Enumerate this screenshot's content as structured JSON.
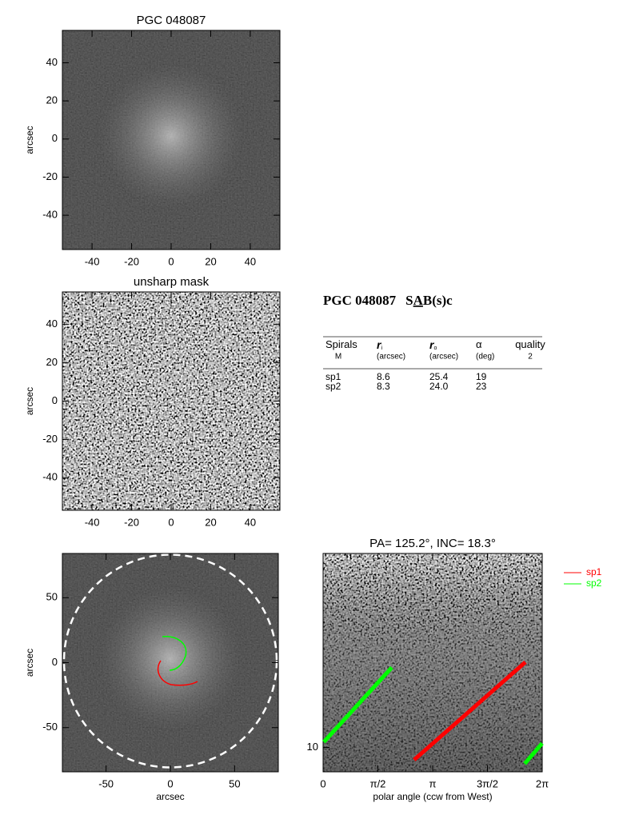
{
  "chart_data": [
    {
      "type": "image",
      "title": "PGC 048087",
      "ylabel": "arcsec",
      "xlim": [
        -55,
        55
      ],
      "ylim": [
        -58,
        57
      ],
      "xticks": [
        -40,
        -20,
        0,
        20,
        40
      ],
      "yticks": [
        -40,
        -20,
        0,
        20,
        40
      ]
    },
    {
      "type": "image",
      "title": "unsharp mask",
      "ylabel": "arcsec",
      "xlim": [
        -55,
        55
      ],
      "ylim": [
        -57,
        57
      ],
      "xticks": [
        -40,
        -20,
        0,
        20,
        40
      ],
      "yticks": [
        -40,
        -20,
        0,
        20,
        40
      ]
    },
    {
      "type": "image",
      "xlabel": "arcsec",
      "ylabel": "arcsec",
      "xlim": [
        -84,
        84
      ],
      "ylim": [
        -84,
        84
      ],
      "xticks": [
        -50,
        0,
        50
      ],
      "yticks": [
        -50,
        0,
        50
      ]
    },
    {
      "type": "line",
      "title": "PA= 125.2°, INC=  18.3°",
      "xlabel": "polar angle (ccw from West)",
      "log_y": true,
      "xlim": [
        0,
        6.283
      ],
      "ylim": [
        8.4,
        40
      ],
      "xticks": [
        0,
        {
          "value": 1.571,
          "label": "π/2"
        },
        {
          "value": 3.142,
          "label": "π"
        },
        {
          "value": 4.712,
          "label": "3π/2"
        },
        {
          "value": 6.283,
          "label": "2π"
        }
      ],
      "yticks": [
        10
      ],
      "series": [
        {
          "name": "sp1",
          "color": "#ff0000",
          "x": [
            2.61,
            5.8
          ],
          "values": [
            9.15,
            18.4
          ]
        },
        {
          "name": "sp2",
          "color": "#00ff00",
          "x": [
            0.02,
            1.97,
            4.0,
            5.78,
            6.28
          ],
          "values": [
            10.4,
            17.7,
            null,
            8.9,
            10.3
          ]
        }
      ]
    }
  ],
  "table": {
    "heading": {
      "galaxy": "PGC 048087",
      "class_start": "S",
      "class_bar": "A",
      "class_end": "B(s)c"
    },
    "columns": [
      {
        "label": "Spirals",
        "sub": "M"
      },
      {
        "label": "r",
        "index": "i",
        "sub": "(arcsec)"
      },
      {
        "label": "r",
        "index": "o",
        "sub": "(arcsec)"
      },
      {
        "label": "α",
        "sub": "(deg)"
      },
      {
        "label": "quality",
        "sub": "2"
      }
    ],
    "rows": [
      [
        "sp1",
        "8.6",
        "25.4",
        "19"
      ],
      [
        "sp2",
        "8.3",
        "24.0",
        "23"
      ]
    ]
  }
}
